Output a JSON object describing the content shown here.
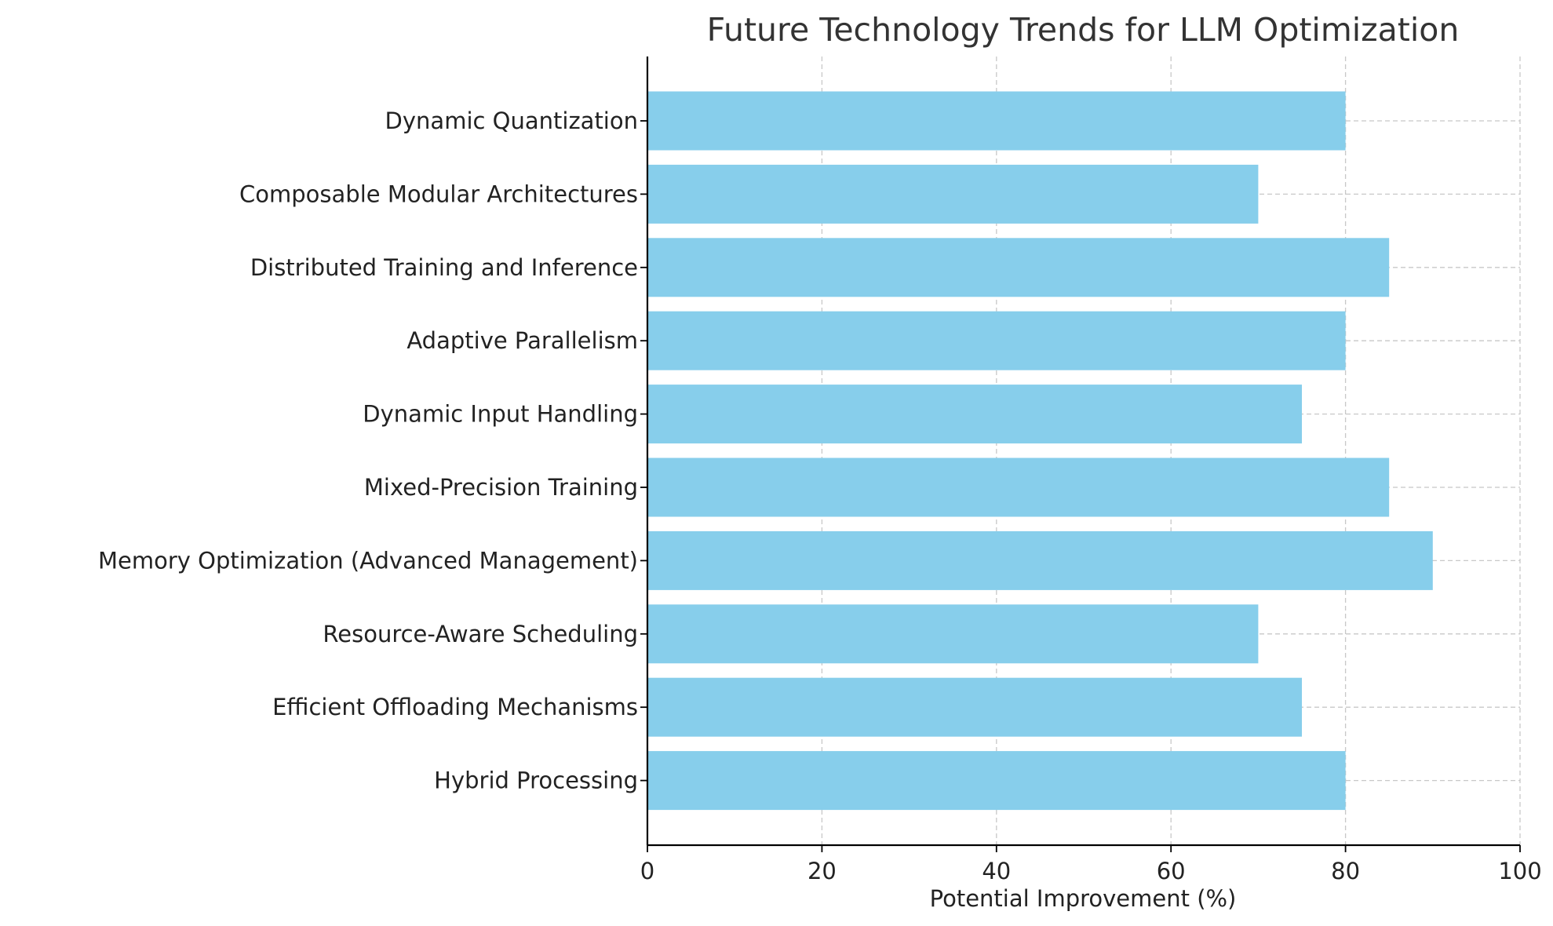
{
  "chart_data": {
    "type": "bar",
    "orientation": "horizontal",
    "title": "Future Technology Trends for LLM Optimization",
    "xlabel": "Potential Improvement (%)",
    "ylabel": "",
    "xlim": [
      0,
      100
    ],
    "x_ticks": [
      "0",
      "20",
      "40",
      "60",
      "80",
      "100"
    ],
    "categories": [
      "Dynamic Quantization",
      "Composable Modular Architectures",
      "Distributed Training and Inference",
      "Adaptive Parallelism",
      "Dynamic Input Handling",
      "Mixed-Precision Training",
      "Memory Optimization (Advanced Management)",
      "Resource-Aware Scheduling",
      "Efficient Offloading Mechanisms",
      "Hybrid Processing"
    ],
    "values": [
      80,
      70,
      85,
      80,
      75,
      85,
      90,
      70,
      75,
      80
    ],
    "bar_color": "#87ceeb",
    "grid": true,
    "grid_style": "dashed",
    "legend": "none"
  }
}
